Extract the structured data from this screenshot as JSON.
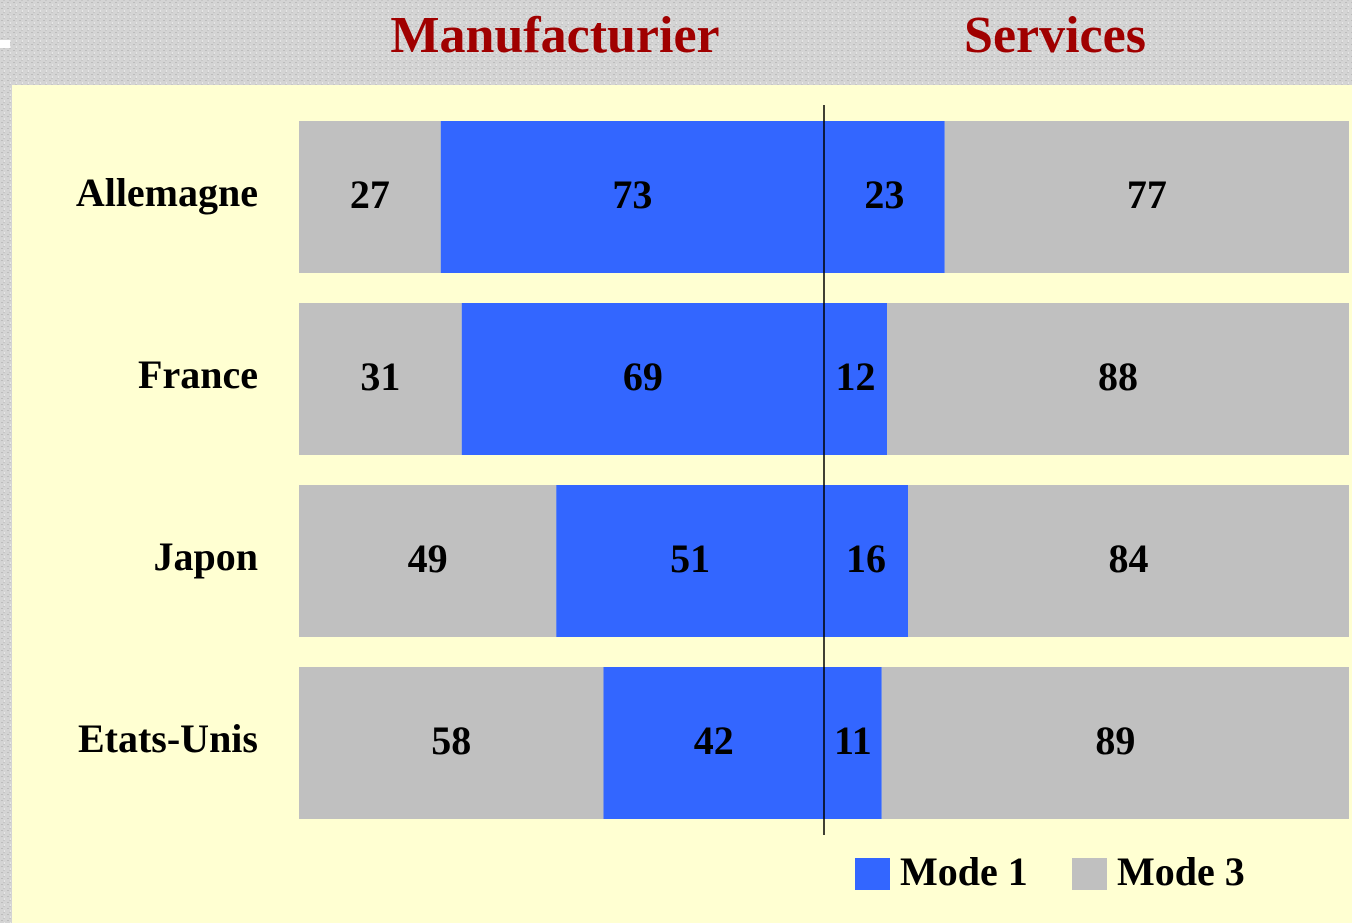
{
  "chart_data": {
    "type": "bar",
    "orientation": "horizontal",
    "panels": [
      "Manufacturier",
      "Services"
    ],
    "categories": [
      "Allemagne",
      "France",
      "Japon",
      "Etats-Unis"
    ],
    "series": [
      {
        "name": "Mode 1",
        "color": "#3366ff",
        "values": [
          [
            73,
            69,
            51,
            42
          ],
          [
            23,
            12,
            16,
            11
          ]
        ]
      },
      {
        "name": "Mode 3",
        "color": "#c0c0c0",
        "values": [
          [
            27,
            31,
            49,
            58
          ],
          [
            77,
            88,
            84,
            89
          ]
        ]
      }
    ],
    "xlim": [
      0,
      100
    ]
  }
}
